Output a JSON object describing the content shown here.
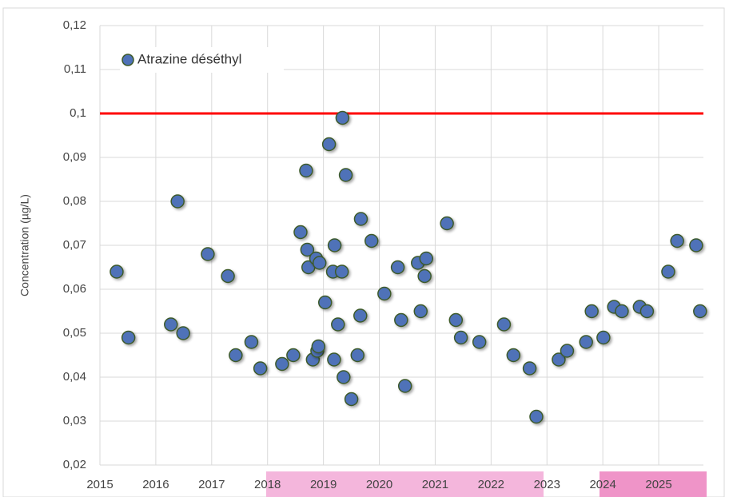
{
  "chart_data": {
    "type": "scatter",
    "y_label": "Concentration (µg/L)",
    "series": [
      {
        "name": "Atrazine déséthyl",
        "color": "#4f72b8",
        "edge_color": "#3d5a2a",
        "x": [
          2015.3,
          2015.51,
          2016.27,
          2016.39,
          2016.49,
          2016.93,
          2017.29,
          2017.43,
          2017.71,
          2017.87,
          2018.26,
          2018.46,
          2018.59,
          2018.69,
          2018.71,
          2018.73,
          2018.81,
          2018.87,
          2018.89,
          2018.91,
          2018.93,
          2019.03,
          2019.1,
          2019.17,
          2019.19,
          2019.2,
          2019.26,
          2019.33,
          2019.34,
          2019.36,
          2019.4,
          2019.5,
          2019.61,
          2019.66,
          2019.67,
          2019.86,
          2020.09,
          2020.33,
          2020.39,
          2020.46,
          2020.69,
          2020.74,
          2020.81,
          2020.84,
          2021.21,
          2021.37,
          2021.46,
          2021.79,
          2022.23,
          2022.4,
          2022.69,
          2022.81,
          2023.21,
          2023.36,
          2023.7,
          2023.8,
          2024.01,
          2024.2,
          2024.34,
          2024.66,
          2024.79,
          2025.17,
          2025.33,
          2025.67,
          2025.74
        ],
        "values": [
          0.064,
          0.049,
          0.052,
          0.08,
          0.05,
          0.068,
          0.063,
          0.045,
          0.048,
          0.042,
          0.043,
          0.045,
          0.073,
          0.087,
          0.069,
          0.065,
          0.044,
          0.067,
          0.046,
          0.047,
          0.066,
          0.057,
          0.093,
          0.064,
          0.044,
          0.07,
          0.052,
          0.064,
          0.099,
          0.04,
          0.086,
          0.035,
          0.045,
          0.054,
          0.076,
          0.071,
          0.059,
          0.065,
          0.053,
          0.038,
          0.066,
          0.055,
          0.063,
          0.067,
          0.075,
          0.053,
          0.049,
          0.048,
          0.052,
          0.045,
          0.042,
          0.031,
          0.044,
          0.046,
          0.048,
          0.055,
          0.049,
          0.056,
          0.055,
          0.056,
          0.055,
          0.064,
          0.071,
          0.07,
          0.055
        ]
      }
    ],
    "reference_line": {
      "value": 0.1,
      "color": "#ff0000"
    },
    "xlim": [
      2015,
      2025.8
    ],
    "xticks": [
      2015,
      2016,
      2017,
      2018,
      2019,
      2020,
      2021,
      2022,
      2023,
      2024,
      2025
    ],
    "ylim": [
      0.02,
      0.12
    ],
    "yticks": [
      {
        "value": 0.02,
        "label": "0,02"
      },
      {
        "value": 0.03,
        "label": "0,03"
      },
      {
        "value": 0.04,
        "label": "0,04"
      },
      {
        "value": 0.05,
        "label": "0,05"
      },
      {
        "value": 0.06,
        "label": "0,06"
      },
      {
        "value": 0.07,
        "label": "0,07"
      },
      {
        "value": 0.08,
        "label": "0,08"
      },
      {
        "value": 0.09,
        "label": "0,09"
      },
      {
        "value": 0.1,
        "label": "0,1"
      },
      {
        "value": 0.11,
        "label": "0,11"
      },
      {
        "value": 0.12,
        "label": "0,12"
      }
    ],
    "grid": true,
    "legend": "top-left"
  }
}
